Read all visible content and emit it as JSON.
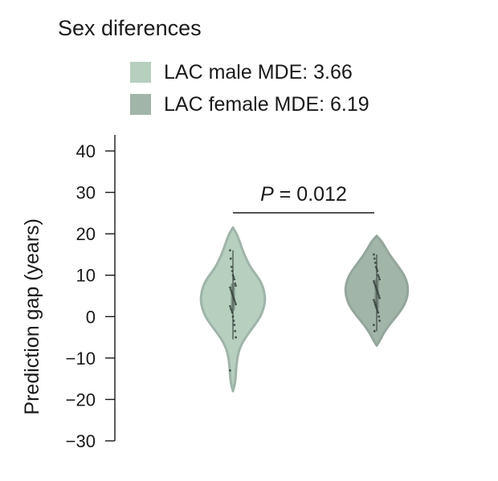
{
  "chart_data": {
    "type": "violin",
    "title": "Sex diferences",
    "ylabel": "Prediction gap (years)",
    "ylim": [
      -30,
      40
    ],
    "yticks": [
      40,
      30,
      20,
      10,
      0,
      -10,
      -20,
      -30
    ],
    "ytick_labels": [
      "40",
      "30",
      "20",
      "10",
      "0",
      "−10",
      "−20",
      "−30"
    ],
    "annotation": {
      "label_italic": "P",
      "label_rest": " = 0.012"
    },
    "series": [
      {
        "name": "LAC male MDE: 3.66",
        "color": "#b6cfbe",
        "edge": "#9fb4aa",
        "range": [
          -18,
          21.5
        ],
        "profile": [
          [
            21.5,
            0.0
          ],
          [
            20,
            0.12
          ],
          [
            18,
            0.22
          ],
          [
            15,
            0.36
          ],
          [
            12,
            0.55
          ],
          [
            10,
            0.75
          ],
          [
            8,
            0.92
          ],
          [
            6,
            1.0
          ],
          [
            4,
            1.03
          ],
          [
            2,
            0.98
          ],
          [
            0,
            0.88
          ],
          [
            -2,
            0.7
          ],
          [
            -4,
            0.5
          ],
          [
            -6,
            0.32
          ],
          [
            -8,
            0.2
          ],
          [
            -10,
            0.14
          ],
          [
            -12,
            0.11
          ],
          [
            -14,
            0.09
          ],
          [
            -16,
            0.07
          ],
          [
            -18,
            0.0
          ]
        ],
        "box": {
          "whisker_low": -5.5,
          "whisker_high": 16,
          "q1": 1.5,
          "q3": 8
        },
        "points": [
          16,
          14,
          12,
          11,
          10,
          9.5,
          9,
          8,
          7.5,
          7,
          6.5,
          6,
          5.5,
          5,
          4.5,
          4,
          3.5,
          3,
          2.5,
          2,
          1.5,
          1,
          0,
          -1,
          -2,
          -3.5,
          -5,
          -13
        ]
      },
      {
        "name": "LAC female MDE: 6.19",
        "color": "#a1b5a9",
        "edge": "#94a69c",
        "range": [
          -7,
          19.5
        ],
        "profile": [
          [
            19.5,
            0.0
          ],
          [
            18,
            0.18
          ],
          [
            16,
            0.32
          ],
          [
            14,
            0.5
          ],
          [
            12,
            0.7
          ],
          [
            10,
            0.88
          ],
          [
            8,
            0.98
          ],
          [
            6,
            1.0
          ],
          [
            4,
            0.95
          ],
          [
            2,
            0.82
          ],
          [
            0,
            0.62
          ],
          [
            -2,
            0.4
          ],
          [
            -4,
            0.22
          ],
          [
            -5.5,
            0.12
          ],
          [
            -7,
            0.0
          ]
        ],
        "box": {
          "whisker_low": -3.5,
          "whisker_high": 15,
          "q1": 2,
          "q3": 9
        },
        "points": [
          15,
          14,
          13,
          12,
          11.5,
          11,
          10,
          9.5,
          9,
          8.5,
          8,
          7.5,
          7,
          6.5,
          6,
          5.5,
          5,
          4.5,
          4,
          3.5,
          3,
          2.5,
          2,
          1.5,
          1,
          0,
          -1,
          -2,
          -3.5
        ]
      }
    ],
    "legend_position": "top-left",
    "grid": false
  }
}
